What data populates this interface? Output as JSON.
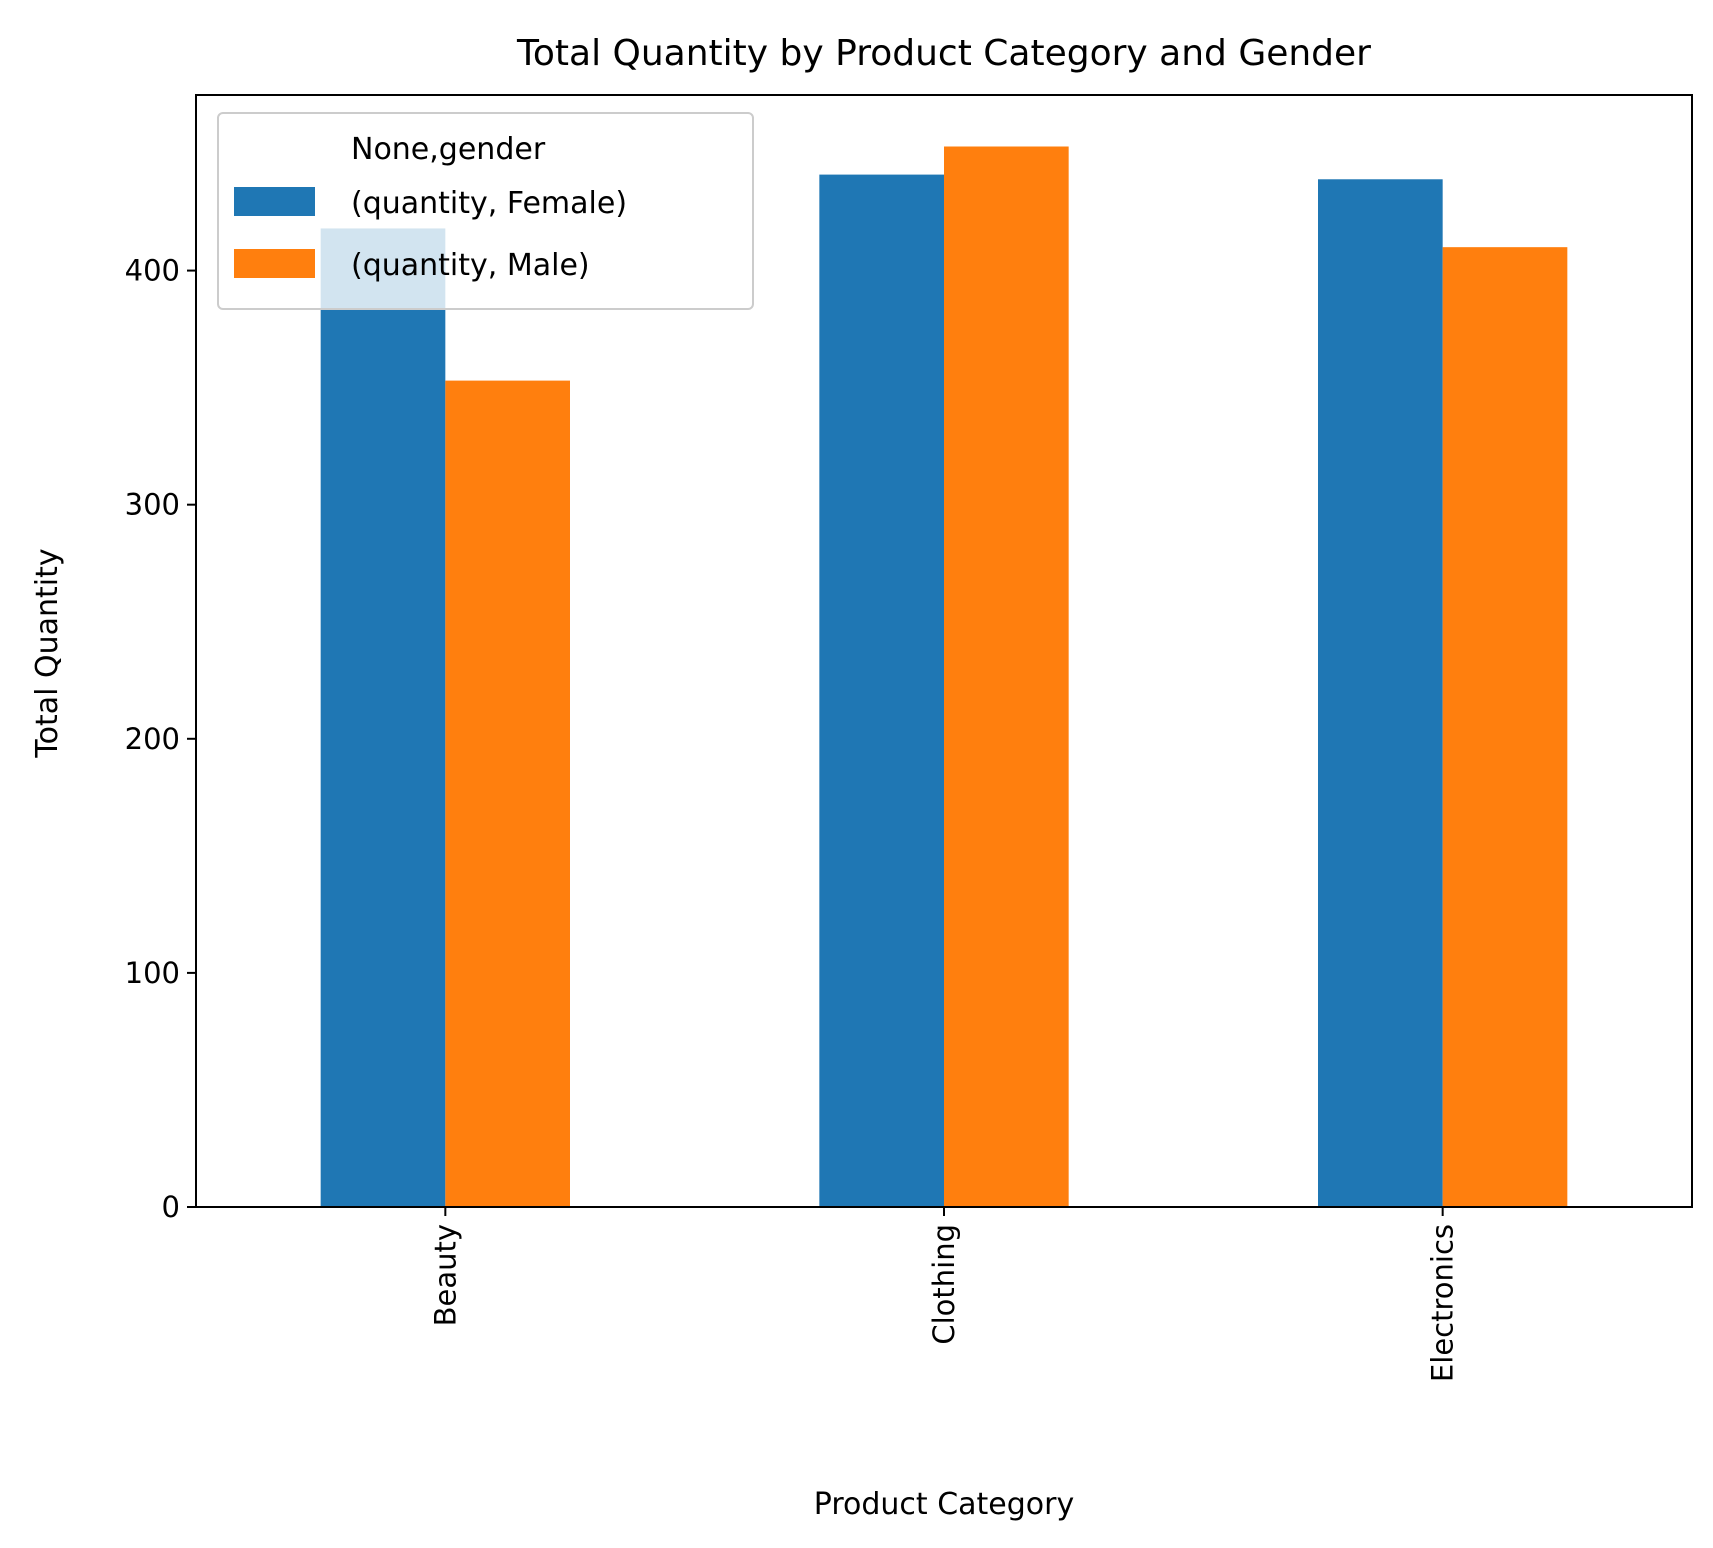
{
  "chart_data": {
    "type": "bar",
    "title": "Total Quantity by Product Category and Gender",
    "xlabel": "Product Category",
    "ylabel": "Total Quantity",
    "categories": [
      "Beauty",
      "Clothing",
      "Electronics"
    ],
    "series": [
      {
        "name": "(quantity, Female)",
        "color": "#1f77b4",
        "values": [
          418,
          441,
          439
        ]
      },
      {
        "name": "(quantity, Male)",
        "color": "#ff7f0e",
        "values": [
          353,
          453,
          410
        ]
      }
    ],
    "ylim": [
      0,
      475
    ],
    "yticks": [
      0,
      100,
      200,
      300,
      400
    ],
    "xtick_rotation": "vertical",
    "grid": false,
    "legend": {
      "title": "None,gender",
      "placement": "upper-left"
    }
  }
}
